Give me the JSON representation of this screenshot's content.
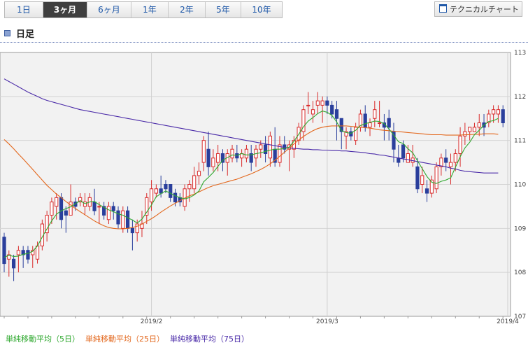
{
  "tabs": [
    {
      "label": "1日",
      "active": false
    },
    {
      "label": "3ヶ月",
      "active": true
    },
    {
      "label": "6ヶ月",
      "active": false
    },
    {
      "label": "1年",
      "active": false
    },
    {
      "label": "2年",
      "active": false
    },
    {
      "label": "5年",
      "active": false
    },
    {
      "label": "10年",
      "active": false
    }
  ],
  "technical_button": "テクニカルチャート",
  "section_title": "日足",
  "legend": [
    {
      "label": "単純移動平均（5日）",
      "color": "#2ea82e"
    },
    {
      "label": "単純移動平均（25日）",
      "color": "#e3681e"
    },
    {
      "label": "単純移動平均（75日）",
      "color": "#4a2aa8"
    }
  ],
  "chart_data": {
    "type": "candlestick",
    "ylim": [
      107,
      113
    ],
    "y_ticks": [
      "107",
      "108",
      "109",
      "110",
      "111",
      "112",
      "113"
    ],
    "x_labels": [
      {
        "label": "2019/2",
        "index": 31
      },
      {
        "label": "2019/3",
        "index": 68
      },
      {
        "label": "2019/4",
        "index": 106
      }
    ],
    "colors": {
      "up": "#d92b2b",
      "down": "#2a3f9c",
      "ma5": "#2ea82e",
      "ma25": "#e3681e",
      "ma75": "#4a2aa8"
    },
    "candles": [
      [
        108.8,
        108.9,
        108.0,
        108.2
      ],
      [
        108.3,
        108.5,
        107.9,
        108.4
      ],
      [
        108.3,
        108.4,
        107.8,
        108.1
      ],
      [
        108.4,
        108.6,
        108.0,
        108.5
      ],
      [
        108.5,
        108.6,
        108.1,
        108.4
      ],
      [
        108.5,
        108.6,
        108.2,
        108.3
      ],
      [
        108.4,
        108.6,
        108.1,
        108.5
      ],
      [
        108.3,
        108.7,
        108.2,
        108.6
      ],
      [
        108.6,
        109.2,
        108.5,
        109.1
      ],
      [
        108.9,
        109.4,
        108.7,
        109.3
      ],
      [
        109.3,
        109.7,
        109.1,
        109.6
      ],
      [
        109.5,
        109.8,
        109.2,
        109.7
      ],
      [
        109.7,
        109.8,
        109.0,
        109.2
      ],
      [
        109.4,
        109.5,
        108.9,
        109.3
      ],
      [
        109.3,
        110.0,
        109.3,
        109.6
      ],
      [
        109.6,
        109.7,
        109.4,
        109.5
      ],
      [
        109.6,
        109.8,
        109.5,
        109.7
      ],
      [
        109.5,
        109.8,
        109.3,
        109.6
      ],
      [
        109.5,
        109.8,
        109.4,
        109.7
      ],
      [
        109.6,
        109.9,
        109.3,
        109.4
      ],
      [
        109.5,
        109.6,
        109.1,
        109.5
      ],
      [
        109.5,
        109.6,
        109.2,
        109.3
      ],
      [
        109.2,
        109.6,
        109.1,
        109.5
      ],
      [
        109.5,
        109.6,
        109.2,
        109.4
      ],
      [
        109.4,
        109.5,
        109.0,
        109.1
      ],
      [
        109.0,
        109.5,
        108.9,
        109.4
      ],
      [
        109.4,
        109.5,
        108.9,
        109.0
      ],
      [
        109.0,
        109.2,
        108.5,
        108.9
      ],
      [
        108.9,
        109.2,
        108.7,
        109.1
      ],
      [
        109.0,
        109.4,
        108.8,
        109.1
      ],
      [
        109.3,
        109.8,
        109.1,
        109.7
      ],
      [
        109.6,
        110.1,
        109.4,
        109.9
      ],
      [
        109.8,
        110.0,
        109.7,
        109.9
      ],
      [
        109.9,
        110.2,
        109.7,
        109.8
      ],
      [
        110.0,
        110.1,
        109.8,
        109.9
      ],
      [
        110.0,
        110.0,
        109.6,
        109.7
      ],
      [
        109.8,
        109.9,
        109.5,
        109.6
      ],
      [
        109.7,
        109.8,
        109.5,
        109.6
      ],
      [
        109.5,
        110.0,
        109.4,
        109.9
      ],
      [
        109.9,
        110.1,
        109.6,
        110.0
      ],
      [
        109.9,
        110.4,
        109.8,
        110.2
      ],
      [
        110.2,
        110.5,
        110.0,
        110.3
      ],
      [
        110.5,
        111.1,
        110.3,
        111.0
      ],
      [
        110.8,
        111.2,
        110.2,
        110.4
      ],
      [
        110.4,
        110.8,
        110.3,
        110.6
      ],
      [
        110.5,
        110.9,
        110.3,
        110.7
      ],
      [
        110.7,
        110.8,
        110.3,
        110.5
      ],
      [
        110.5,
        110.8,
        110.2,
        110.7
      ],
      [
        110.6,
        110.9,
        110.5,
        110.8
      ],
      [
        110.7,
        110.9,
        110.5,
        110.6
      ],
      [
        110.6,
        110.8,
        110.4,
        110.7
      ],
      [
        110.6,
        110.9,
        110.5,
        110.8
      ],
      [
        110.7,
        110.9,
        110.3,
        110.5
      ],
      [
        110.6,
        110.9,
        110.4,
        110.8
      ],
      [
        110.8,
        111.0,
        110.6,
        110.9
      ],
      [
        110.9,
        111.1,
        110.5,
        110.7
      ],
      [
        110.6,
        111.2,
        110.4,
        111.1
      ],
      [
        110.8,
        111.3,
        110.4,
        110.5
      ],
      [
        110.5,
        111.1,
        110.4,
        110.9
      ],
      [
        110.9,
        111.1,
        110.7,
        110.8
      ],
      [
        110.8,
        111.0,
        110.3,
        110.9
      ],
      [
        110.8,
        111.1,
        110.6,
        111.0
      ],
      [
        111.0,
        111.4,
        110.9,
        111.3
      ],
      [
        111.2,
        111.8,
        111.0,
        111.7
      ],
      [
        111.8,
        112.1,
        111.6,
        111.8
      ],
      [
        111.6,
        111.9,
        111.4,
        111.7
      ],
      [
        111.8,
        112.1,
        111.6,
        111.9
      ],
      [
        111.8,
        112.0,
        111.4,
        111.9
      ],
      [
        111.9,
        112.0,
        111.6,
        111.8
      ],
      [
        111.8,
        111.9,
        111.5,
        111.6
      ],
      [
        111.7,
        111.9,
        111.0,
        111.5
      ],
      [
        111.5,
        111.5,
        110.8,
        111.2
      ],
      [
        111.1,
        111.3,
        110.8,
        111.2
      ],
      [
        111.2,
        111.3,
        111.0,
        111.1
      ],
      [
        111.0,
        111.4,
        110.9,
        111.3
      ],
      [
        111.3,
        111.7,
        111.2,
        111.6
      ],
      [
        111.6,
        111.8,
        111.2,
        111.3
      ],
      [
        111.3,
        111.5,
        111.1,
        111.4
      ],
      [
        111.5,
        111.9,
        111.3,
        111.7
      ],
      [
        111.4,
        111.9,
        111.3,
        111.4
      ],
      [
        111.4,
        111.6,
        111.0,
        111.3
      ],
      [
        111.5,
        111.7,
        111.0,
        111.3
      ],
      [
        111.2,
        111.4,
        110.5,
        110.8
      ],
      [
        110.6,
        110.9,
        110.4,
        110.5
      ],
      [
        110.9,
        111.0,
        110.5,
        110.6
      ],
      [
        110.5,
        110.9,
        110.5,
        110.7
      ],
      [
        110.5,
        110.9,
        110.4,
        110.6
      ],
      [
        110.4,
        110.6,
        109.8,
        109.9
      ],
      [
        110.0,
        110.4,
        109.8,
        110.2
      ],
      [
        109.9,
        110.1,
        109.6,
        109.8
      ],
      [
        109.8,
        110.2,
        109.7,
        110.1
      ],
      [
        109.9,
        110.5,
        109.8,
        110.4
      ],
      [
        110.4,
        110.7,
        110.2,
        110.6
      ],
      [
        110.6,
        110.8,
        110.3,
        110.5
      ],
      [
        110.4,
        110.7,
        110.0,
        110.5
      ],
      [
        110.5,
        110.8,
        110.3,
        110.7
      ],
      [
        110.7,
        111.3,
        110.4,
        111.1
      ],
      [
        111.1,
        111.4,
        110.9,
        111.2
      ],
      [
        111.2,
        111.3,
        111.0,
        111.3
      ],
      [
        111.2,
        111.4,
        111.2,
        111.3
      ],
      [
        111.3,
        111.6,
        111.1,
        111.4
      ],
      [
        111.4,
        111.6,
        111.1,
        111.3
      ],
      [
        111.4,
        111.7,
        111.3,
        111.6
      ],
      [
        111.6,
        111.8,
        111.4,
        111.7
      ],
      [
        111.6,
        111.8,
        111.4,
        111.7
      ],
      [
        111.7,
        111.8,
        111.3,
        111.4
      ]
    ],
    "ma5": [
      108.34,
      108.39,
      108.36,
      108.37,
      108.41,
      108.43,
      108.48,
      108.6,
      108.8,
      108.99,
      109.17,
      109.32,
      109.4,
      109.45,
      109.49,
      109.56,
      109.63,
      109.56,
      109.6,
      109.61,
      109.54,
      109.48,
      109.42,
      109.38,
      109.33,
      109.3,
      109.24,
      109.19,
      109.12,
      109.21,
      109.37,
      109.53,
      109.72,
      109.79,
      109.85,
      109.8,
      109.74,
      109.7,
      109.67,
      109.7,
      109.76,
      109.85,
      110.06,
      110.16,
      110.27,
      110.41,
      110.55,
      110.61,
      110.67,
      110.66,
      110.7,
      110.67,
      110.67,
      110.7,
      110.72,
      110.75,
      110.78,
      110.8,
      110.8,
      110.82,
      110.85,
      110.98,
      111.14,
      111.31,
      111.44,
      111.52,
      111.61,
      111.67,
      111.64,
      111.57,
      111.42,
      111.22,
      111.18,
      111.16,
      111.23,
      111.34,
      111.38,
      111.41,
      111.44,
      111.43,
      111.38,
      111.26,
      111.12,
      110.97,
      110.93,
      110.81,
      110.72,
      110.54,
      110.36,
      110.18,
      110.05,
      110.02,
      110.07,
      110.1,
      110.15,
      110.39,
      110.63,
      110.83,
      110.96,
      111.13,
      111.23,
      111.35,
      111.43,
      111.45,
      111.5
    ],
    "ma25": [
      111.02,
      110.92,
      110.81,
      110.69,
      110.58,
      110.46,
      110.34,
      110.22,
      110.1,
      109.98,
      109.88,
      109.78,
      109.7,
      109.61,
      109.53,
      109.45,
      109.38,
      109.31,
      109.24,
      109.17,
      109.11,
      109.06,
      109.02,
      109.0,
      108.99,
      108.99,
      109.0,
      109.02,
      109.05,
      109.1,
      109.16,
      109.22,
      109.29,
      109.37,
      109.44,
      109.51,
      109.57,
      109.63,
      109.69,
      109.74,
      109.78,
      109.83,
      109.88,
      109.93,
      109.97,
      110.0,
      110.03,
      110.06,
      110.09,
      110.12,
      110.16,
      110.2,
      110.24,
      110.29,
      110.34,
      110.4,
      110.47,
      110.55,
      110.64,
      110.73,
      110.82,
      110.92,
      111.01,
      111.09,
      111.16,
      111.22,
      111.27,
      111.3,
      111.32,
      111.33,
      111.33,
      111.33,
      111.33,
      111.32,
      111.31,
      111.3,
      111.29,
      111.28,
      111.26,
      111.24,
      111.23,
      111.22,
      111.21,
      111.2,
      111.19,
      111.18,
      111.17,
      111.16,
      111.15,
      111.14,
      111.13,
      111.13,
      111.13,
      111.12,
      111.12,
      111.12,
      111.12,
      111.13,
      111.13,
      111.14,
      111.14,
      111.15,
      111.15,
      111.15,
      111.14
    ],
    "ma75": [
      112.4,
      112.34,
      112.28,
      112.22,
      112.16,
      112.1,
      112.05,
      112.0,
      111.95,
      111.91,
      111.88,
      111.85,
      111.82,
      111.79,
      111.76,
      111.73,
      111.7,
      111.68,
      111.66,
      111.64,
      111.62,
      111.6,
      111.58,
      111.56,
      111.54,
      111.52,
      111.5,
      111.48,
      111.46,
      111.44,
      111.42,
      111.4,
      111.38,
      111.36,
      111.34,
      111.32,
      111.3,
      111.28,
      111.26,
      111.24,
      111.22,
      111.2,
      111.18,
      111.16,
      111.14,
      111.12,
      111.1,
      111.08,
      111.06,
      111.04,
      111.02,
      111.0,
      110.98,
      110.96,
      110.94,
      110.92,
      110.9,
      110.88,
      110.86,
      110.84,
      110.83,
      110.82,
      110.81,
      110.8,
      110.8,
      110.79,
      110.79,
      110.78,
      110.78,
      110.77,
      110.77,
      110.76,
      110.76,
      110.75,
      110.74,
      110.73,
      110.72,
      110.7,
      110.69,
      110.67,
      110.66,
      110.64,
      110.62,
      110.6,
      110.58,
      110.56,
      110.54,
      110.52,
      110.5,
      110.48,
      110.46,
      110.44,
      110.42,
      110.4,
      110.37,
      110.35,
      110.32,
      110.3,
      110.29,
      110.28,
      110.27,
      110.26,
      110.26,
      110.26,
      110.26
    ]
  }
}
